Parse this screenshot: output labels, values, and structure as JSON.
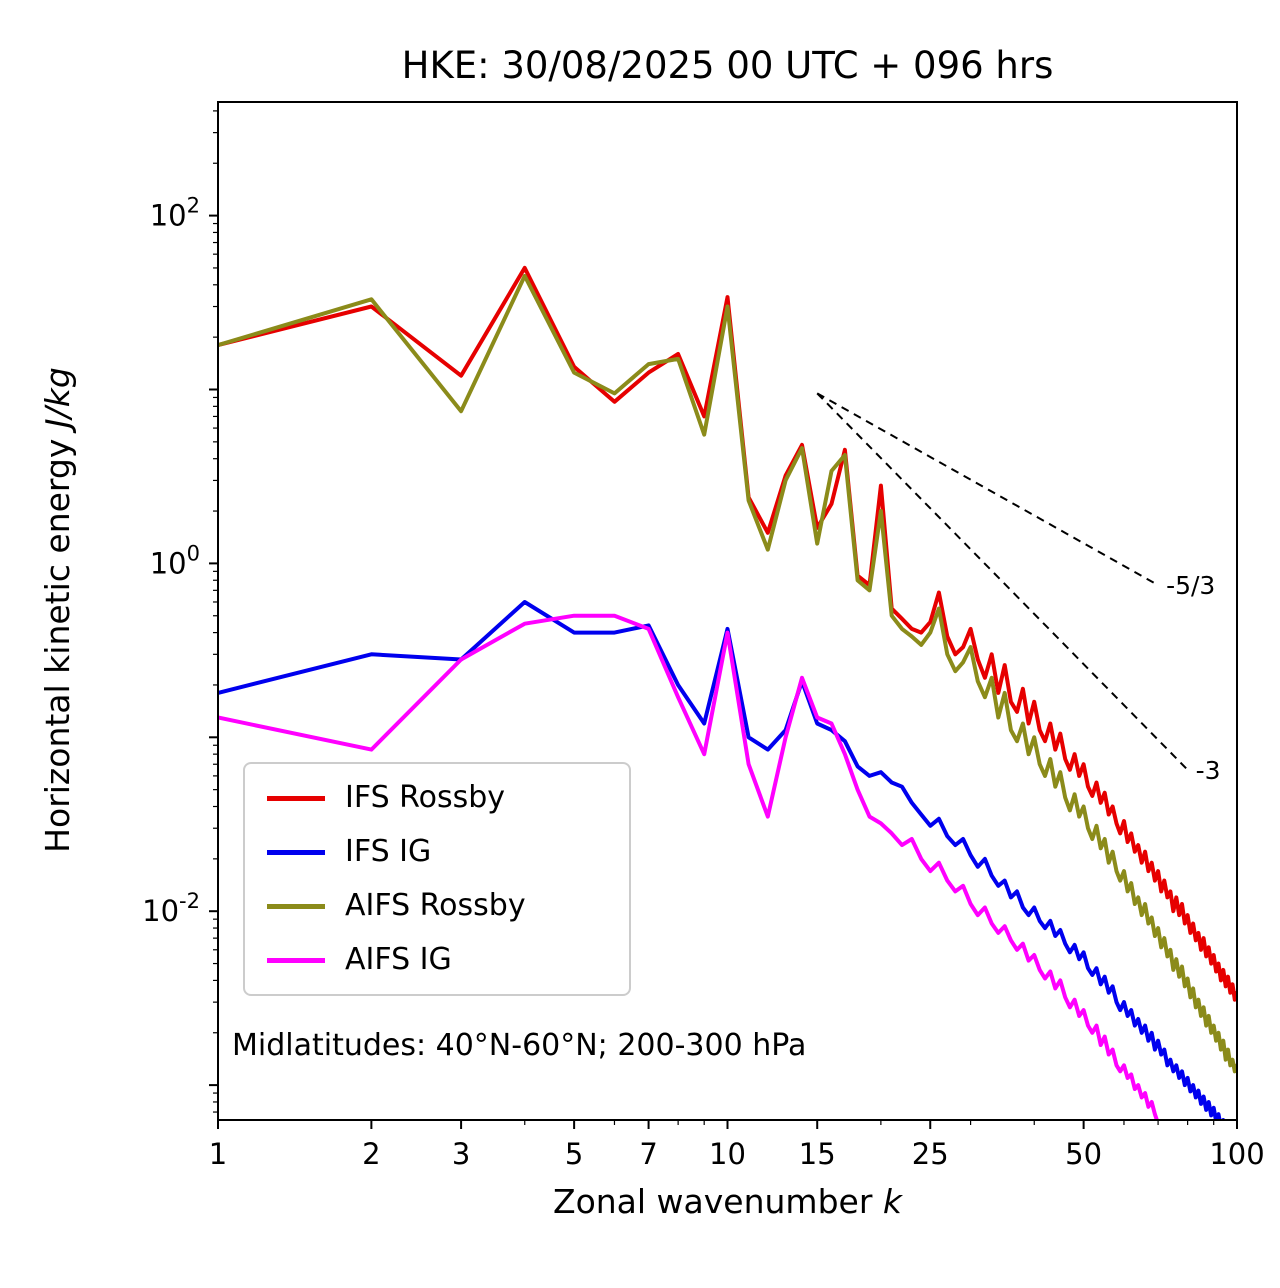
{
  "title": "HKE: 30/08/2025 00 UTC + 096 hrs",
  "annotation": "Midlatitudes: 40°N-60°N; 200-300 hPa",
  "axes": {
    "xlabel_prefix": "Zonal wavenumber ",
    "xlabel_italic": "k",
    "ylabel_prefix": "Horizontal kinetic energy ",
    "ylabel_italic": "J/kg",
    "xlim": [
      1,
      100
    ],
    "ylim": [
      0.00063,
      450
    ],
    "x_ticks": [
      {
        "v": 1,
        "label": "1"
      },
      {
        "v": 2,
        "label": "2"
      },
      {
        "v": 3,
        "label": "3"
      },
      {
        "v": 5,
        "label": "5"
      },
      {
        "v": 7,
        "label": "7"
      },
      {
        "v": 10,
        "label": "10"
      },
      {
        "v": 15,
        "label": "15"
      },
      {
        "v": 25,
        "label": "25"
      },
      {
        "v": 50,
        "label": "50"
      },
      {
        "v": 100,
        "label": "100"
      }
    ],
    "x_minor": [
      4,
      6,
      8,
      9,
      20,
      30,
      40,
      60,
      70,
      80,
      90
    ],
    "y_ticks": [
      {
        "v": 100,
        "base": "10",
        "exp": "2"
      },
      {
        "v": 1,
        "base": "10",
        "exp": "0"
      },
      {
        "v": 0.01,
        "base": "10",
        "exp": "-2"
      }
    ]
  },
  "legend": {
    "items": [
      {
        "label": "IFS Rossby",
        "color": "#e60000"
      },
      {
        "label": "IFS IG",
        "color": "#0000ee"
      },
      {
        "label": "AIFS Rossby",
        "color": "#8b8b1a"
      },
      {
        "label": "AIFS IG",
        "color": "#ff00ff"
      }
    ]
  },
  "guides": [
    {
      "label": "-5/3",
      "x": [
        15,
        70
      ],
      "y": [
        9.5,
        0.75
      ]
    },
    {
      "label": "-3",
      "x": [
        15,
        80
      ],
      "y": [
        9.5,
        0.065
      ]
    }
  ],
  "chart_data": {
    "type": "line",
    "title": "HKE: 30/08/2025 00 UTC + 096 hrs",
    "xlabel": "Zonal wavenumber k",
    "ylabel": "Horizontal kinetic energy J/kg",
    "xscale": "log",
    "yscale": "log",
    "xlim": [
      1,
      100
    ],
    "ylim": [
      0.00063,
      450
    ],
    "legend_position": "lower left",
    "x": [
      1,
      2,
      3,
      4,
      5,
      6,
      7,
      8,
      9,
      10,
      11,
      12,
      13,
      14,
      15,
      16,
      17,
      18,
      19,
      20,
      21,
      22,
      23,
      24,
      25,
      26,
      27,
      28,
      29,
      30,
      31,
      32,
      33,
      34,
      35,
      36,
      37,
      38,
      39,
      40,
      41,
      42,
      43,
      44,
      45,
      46,
      47,
      48,
      49,
      50,
      51,
      52,
      53,
      54,
      55,
      56,
      57,
      58,
      59,
      60,
      61,
      62,
      63,
      64,
      65,
      66,
      67,
      68,
      69,
      70,
      71,
      72,
      73,
      74,
      75,
      76,
      77,
      78,
      79,
      80,
      81,
      82,
      83,
      84,
      85,
      86,
      87,
      88,
      89,
      90,
      91,
      92,
      93,
      94,
      95,
      96,
      97,
      98,
      99,
      100
    ],
    "series": [
      {
        "name": "IFS Rossby",
        "color": "#e60000",
        "values": [
          18,
          30,
          12,
          50,
          13.5,
          8.5,
          12.5,
          16,
          7,
          34,
          2.4,
          1.5,
          3.2,
          4.8,
          1.6,
          2.2,
          4.5,
          0.85,
          0.75,
          2.8,
          0.55,
          0.48,
          0.42,
          0.4,
          0.46,
          0.68,
          0.38,
          0.3,
          0.33,
          0.42,
          0.28,
          0.22,
          0.3,
          0.18,
          0.26,
          0.16,
          0.14,
          0.19,
          0.12,
          0.16,
          0.11,
          0.095,
          0.12,
          0.085,
          0.105,
          0.075,
          0.065,
          0.08,
          0.06,
          0.07,
          0.052,
          0.046,
          0.055,
          0.042,
          0.048,
          0.036,
          0.04,
          0.032,
          0.028,
          0.033,
          0.025,
          0.028,
          0.022,
          0.024,
          0.019,
          0.022,
          0.017,
          0.019,
          0.015,
          0.017,
          0.013,
          0.015,
          0.012,
          0.013,
          0.01,
          0.012,
          0.0095,
          0.011,
          0.0085,
          0.0095,
          0.0075,
          0.0085,
          0.0068,
          0.0075,
          0.006,
          0.007,
          0.0055,
          0.0062,
          0.005,
          0.0056,
          0.0045,
          0.005,
          0.004,
          0.0046,
          0.0037,
          0.0042,
          0.0034,
          0.0038,
          0.0031,
          0.0034
        ]
      },
      {
        "name": "IFS IG",
        "color": "#0000ee",
        "values": [
          0.18,
          0.3,
          0.28,
          0.6,
          0.4,
          0.4,
          0.44,
          0.2,
          0.12,
          0.42,
          0.1,
          0.085,
          0.11,
          0.21,
          0.12,
          0.11,
          0.095,
          0.068,
          0.06,
          0.063,
          0.055,
          0.052,
          0.042,
          0.036,
          0.031,
          0.034,
          0.027,
          0.024,
          0.026,
          0.021,
          0.018,
          0.02,
          0.016,
          0.014,
          0.015,
          0.012,
          0.013,
          0.0105,
          0.0095,
          0.0105,
          0.0088,
          0.008,
          0.0088,
          0.0072,
          0.0078,
          0.0065,
          0.0058,
          0.0064,
          0.0053,
          0.0058,
          0.0047,
          0.0043,
          0.0047,
          0.0038,
          0.0042,
          0.0034,
          0.0037,
          0.003,
          0.0027,
          0.003,
          0.0025,
          0.0027,
          0.0022,
          0.0024,
          0.002,
          0.0022,
          0.0018,
          0.002,
          0.0016,
          0.0018,
          0.0015,
          0.0016,
          0.0013,
          0.0014,
          0.0012,
          0.0013,
          0.0011,
          0.0012,
          0.001,
          0.0011,
          0.00092,
          0.001,
          0.00085,
          0.00093,
          0.00078,
          0.00086,
          0.00072,
          0.0008,
          0.00067,
          0.00074,
          0.00062,
          0.00068,
          0.00057,
          0.00063,
          0.00053,
          0.00058,
          0.00049,
          0.00054,
          0.00046,
          0.0005
        ]
      },
      {
        "name": "AIFS Rossby",
        "color": "#8b8b1a",
        "values": [
          18,
          33,
          7.5,
          45,
          12.5,
          9.5,
          14,
          15,
          5.5,
          30,
          2.3,
          1.2,
          3,
          4.6,
          1.3,
          3.4,
          4.2,
          0.8,
          0.7,
          2,
          0.5,
          0.42,
          0.38,
          0.34,
          0.4,
          0.55,
          0.3,
          0.24,
          0.27,
          0.33,
          0.21,
          0.17,
          0.22,
          0.13,
          0.18,
          0.11,
          0.095,
          0.12,
          0.08,
          0.1,
          0.07,
          0.06,
          0.075,
          0.052,
          0.063,
          0.045,
          0.038,
          0.047,
          0.035,
          0.04,
          0.03,
          0.026,
          0.031,
          0.023,
          0.026,
          0.019,
          0.022,
          0.017,
          0.015,
          0.017,
          0.013,
          0.0145,
          0.011,
          0.012,
          0.0095,
          0.011,
          0.0085,
          0.0092,
          0.0072,
          0.008,
          0.0062,
          0.007,
          0.0055,
          0.006,
          0.0046,
          0.0053,
          0.0042,
          0.0048,
          0.0037,
          0.0041,
          0.0032,
          0.0036,
          0.0028,
          0.0031,
          0.0025,
          0.0028,
          0.0022,
          0.0025,
          0.002,
          0.0022,
          0.0018,
          0.002,
          0.0016,
          0.0018,
          0.0014,
          0.0016,
          0.0013,
          0.0014,
          0.0012,
          0.0013
        ]
      },
      {
        "name": "AIFS IG",
        "color": "#ff00ff",
        "values": [
          0.13,
          0.085,
          0.28,
          0.45,
          0.5,
          0.5,
          0.42,
          0.17,
          0.08,
          0.4,
          0.07,
          0.035,
          0.1,
          0.22,
          0.13,
          0.12,
          0.08,
          0.05,
          0.035,
          0.032,
          0.028,
          0.024,
          0.026,
          0.02,
          0.017,
          0.019,
          0.015,
          0.013,
          0.014,
          0.011,
          0.0095,
          0.0105,
          0.0085,
          0.0075,
          0.0082,
          0.0068,
          0.006,
          0.0065,
          0.0052,
          0.0056,
          0.0046,
          0.0041,
          0.0045,
          0.0036,
          0.004,
          0.0032,
          0.0028,
          0.0031,
          0.0025,
          0.0027,
          0.0022,
          0.002,
          0.0022,
          0.0017,
          0.0019,
          0.0015,
          0.0016,
          0.0013,
          0.0012,
          0.0013,
          0.0011,
          0.00115,
          0.00095,
          0.001,
          0.00085,
          0.0009,
          0.00075,
          0.0008,
          0.00068,
          0.0006,
          null,
          null,
          null,
          null,
          null,
          null,
          null,
          null,
          null,
          null,
          null,
          null,
          null,
          null,
          null,
          null,
          null,
          null,
          null,
          null,
          null,
          null,
          null,
          null,
          null,
          null,
          null,
          null,
          null,
          null
        ]
      }
    ]
  }
}
